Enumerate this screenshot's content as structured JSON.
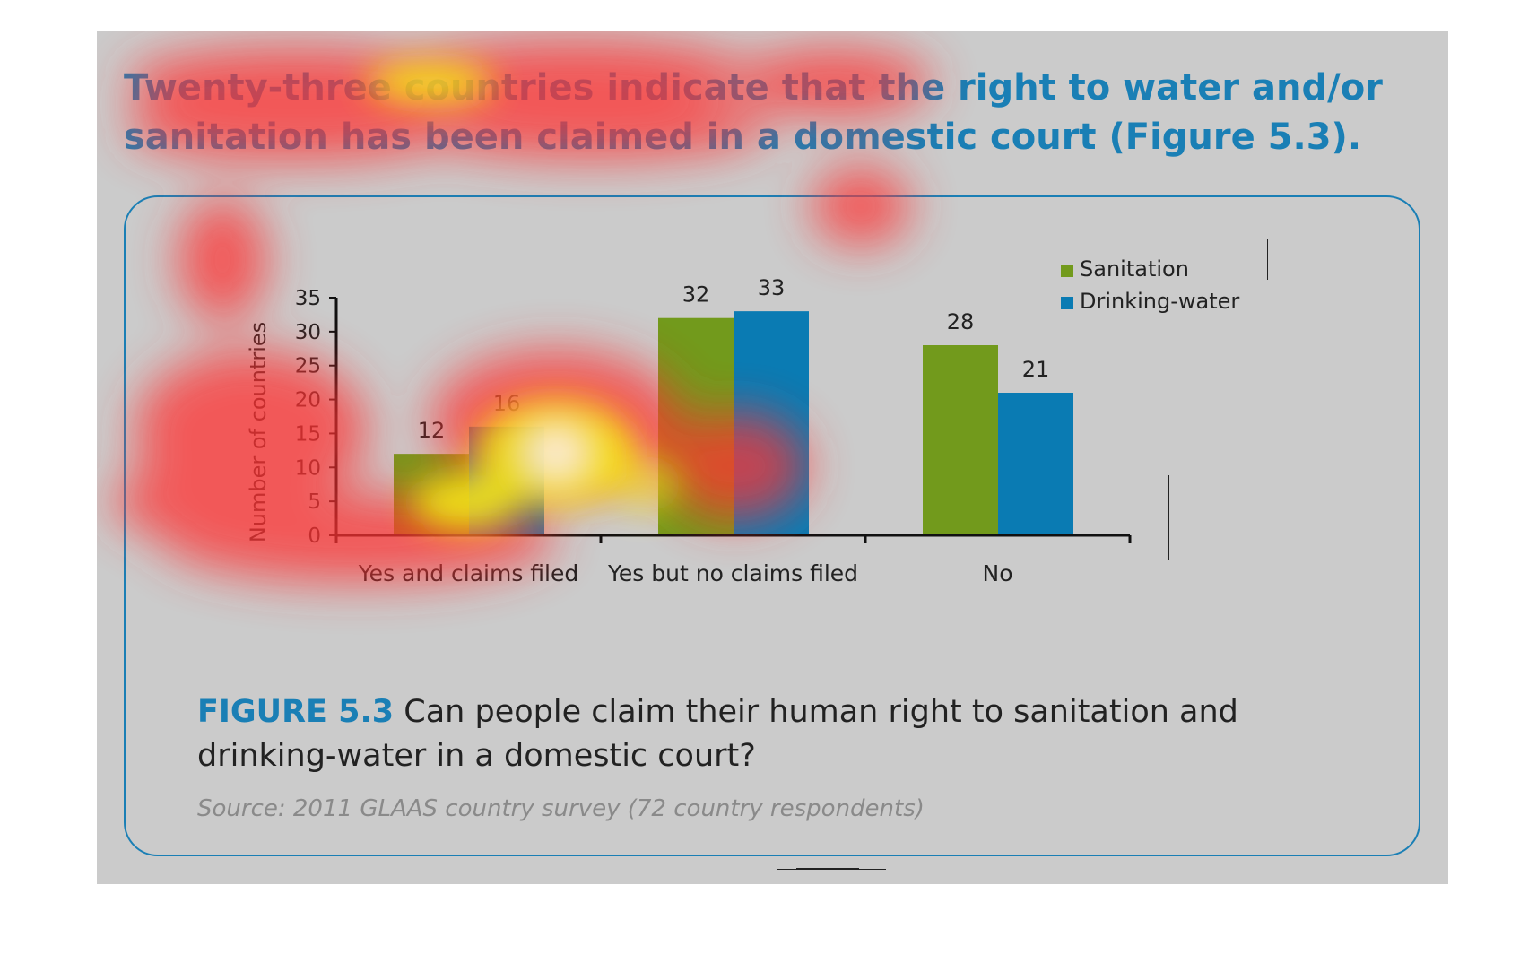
{
  "headline": {
    "line1": "Twenty-three countries indicate that the right to water and/or",
    "line2": "sanitation has been claimed in a domestic court (Figure 5.3)."
  },
  "caption": {
    "label": "FIGURE 5.3",
    "text": "Can people claim their human right to sanitation and drinking-water in a domestic court?"
  },
  "source": "Source: 2011 GLAAS country survey (72 country respondents)",
  "colors": {
    "sanitation": "#729a1c",
    "drinking_water": "#0a7bb3",
    "accent": "#1a7fb5"
  },
  "chart_data": {
    "type": "bar",
    "categories": [
      "Yes and claims filed",
      "Yes but no claims filed",
      "No"
    ],
    "series": [
      {
        "name": "Sanitation",
        "values": [
          12,
          32,
          28
        ],
        "color": "#729a1c"
      },
      {
        "name": "Drinking-water",
        "values": [
          16,
          33,
          21
        ],
        "color": "#0a7bb3"
      }
    ],
    "ylabel": "Number of countries",
    "xlabel": "",
    "ylim": [
      0,
      35
    ],
    "yticks": [
      0,
      5,
      10,
      15,
      20,
      25,
      30,
      35
    ],
    "data_labels": true,
    "grid": false,
    "legend_position": "top-right"
  }
}
